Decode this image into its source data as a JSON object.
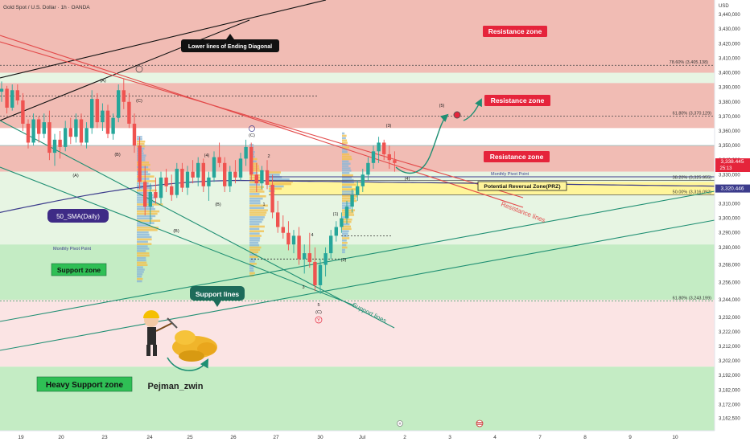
{
  "header": {
    "title": "Gold Spot / U.S. Dollar · 1h · OANDA",
    "currency": "USD"
  },
  "colors": {
    "resistance_fill": "#f1bcb4",
    "resistance_fill_light": "#f6d2cc",
    "support_fill": "#c4ecc4",
    "support_fill_light": "#e7f5e3",
    "pink_band": "#fbe4e4",
    "prz_fill": "#fff59a",
    "label_red": "#e5243b",
    "label_green": "#13a84a",
    "support_line": "#1f8f73",
    "resistance_line": "#e34b4b",
    "sma_line": "#3c3c8c",
    "up_candle": "#26a69a",
    "down_candle": "#ef5350"
  },
  "chart_data": {
    "type": "candlestick",
    "y_range": [
      3154,
      3450
    ],
    "price_ticks": [
      "3,440,000",
      "3,430,000",
      "3,420,000",
      "3,410,000",
      "3,400,000",
      "3,390,000",
      "3,380,000",
      "3,370,000",
      "3,360,000",
      "3,350,000",
      "3,340,000",
      "3,330,000",
      "3,320,000",
      "3,310,000",
      "3,300,000",
      "3,290,000",
      "3,280,000",
      "3,268,000",
      "3,256,000",
      "3,244,000",
      "3,232,000",
      "3,222,000",
      "3,212,000",
      "3,202,000",
      "3,192,000",
      "3,182,000",
      "3,172,000",
      "3,162,500"
    ],
    "price_tick_values": [
      3440,
      3430,
      3420,
      3410,
      3400,
      3390,
      3380,
      3370,
      3360,
      3350,
      3340,
      3330,
      3320,
      3310,
      3300,
      3290,
      3280,
      3268,
      3256,
      3244,
      3232,
      3222,
      3212,
      3202,
      3192,
      3182,
      3172,
      3162.5
    ],
    "x_ticks": [
      "19",
      "20",
      "23",
      "24",
      "25",
      "26",
      "27",
      "30",
      "Jul",
      "2",
      "3",
      "4",
      "7",
      "8",
      "9",
      "10"
    ],
    "x_tick_index": [
      0,
      12,
      24,
      36,
      48,
      60,
      72,
      84,
      94,
      106,
      118,
      130,
      142,
      154,
      166,
      178
    ],
    "current_price_label": "3,338.445",
    "current_price": 3338.445,
    "countdown_label": "25:13",
    "sma_price_label": "3,320.446",
    "sma_price": 3320.446,
    "zones": [
      {
        "name": "Resistance zone",
        "from": 3400,
        "to": 3450
      },
      {
        "name": "Resistance zone",
        "from": 3362,
        "to": 3393
      },
      {
        "name": "Resistance zone",
        "from": 3332,
        "to": 3350
      },
      {
        "name": "Potential Reversal Zone(PRZ)",
        "from": 3316,
        "to": 3325
      },
      {
        "name": "Support zone",
        "from": 3244,
        "to": 3282
      },
      {
        "name": "Heavy Support zone",
        "from": 3154,
        "to": 3198
      }
    ],
    "fib_levels": [
      {
        "label": "78.60% (3,405.138)",
        "value": 3405.138
      },
      {
        "label": "61.80% (3,370.129)",
        "value": 3370.129
      },
      {
        "label": "38.20% (3,325.955)",
        "value": 3325.955
      },
      {
        "label": "50.00% (3,316.092)",
        "value": 3316.092
      },
      {
        "label": "61.80% (3,243.199)",
        "value": 3243.199
      }
    ],
    "pivot_levels": [
      {
        "label": "Monthly Pivot Point",
        "value": 3328.5
      },
      {
        "label": "Monthly Pivot Point",
        "value": 3282
      }
    ],
    "wave_labels": [
      "(A)",
      "(B)",
      "(C)",
      "(4)",
      "(B)",
      "(C)",
      "2",
      "1",
      "4",
      "3",
      "5",
      "(1)",
      "(2)",
      "(3)",
      "(4)",
      "(5)",
      "(A)",
      "(B)",
      "(C)",
      "Y"
    ],
    "candles": [
      [
        3387,
        3394,
        3380,
        3389
      ],
      [
        3389,
        3391,
        3372,
        3376
      ],
      [
        3376,
        3392,
        3374,
        3388
      ],
      [
        3388,
        3392,
        3378,
        3381
      ],
      [
        3381,
        3386,
        3360,
        3365
      ],
      [
        3365,
        3368,
        3348,
        3352
      ],
      [
        3352,
        3372,
        3350,
        3368
      ],
      [
        3368,
        3370,
        3352,
        3358
      ],
      [
        3358,
        3372,
        3355,
        3366
      ],
      [
        3366,
        3374,
        3340,
        3345
      ],
      [
        3345,
        3358,
        3336,
        3354
      ],
      [
        3354,
        3360,
        3341,
        3349
      ],
      [
        3349,
        3367,
        3346,
        3362
      ],
      [
        3362,
        3369,
        3351,
        3356
      ],
      [
        3356,
        3372,
        3352,
        3368
      ],
      [
        3368,
        3372,
        3350,
        3352
      ],
      [
        3352,
        3366,
        3348,
        3362
      ],
      [
        3362,
        3388,
        3358,
        3382
      ],
      [
        3382,
        3386,
        3362,
        3366
      ],
      [
        3366,
        3379,
        3360,
        3374
      ],
      [
        3374,
        3378,
        3355,
        3358
      ],
      [
        3358,
        3372,
        3354,
        3369
      ],
      [
        3369,
        3392,
        3366,
        3388
      ],
      [
        3388,
        3396,
        3375,
        3380
      ],
      [
        3380,
        3386,
        3362,
        3365
      ],
      [
        3365,
        3372,
        3345,
        3350
      ],
      [
        3350,
        3356,
        3320,
        3325
      ],
      [
        3325,
        3336,
        3302,
        3308
      ],
      [
        3308,
        3324,
        3296,
        3318
      ],
      [
        3318,
        3328,
        3310,
        3314
      ],
      [
        3314,
        3332,
        3310,
        3328
      ],
      [
        3328,
        3334,
        3318,
        3322
      ],
      [
        3322,
        3330,
        3312,
        3316
      ],
      [
        3316,
        3338,
        3314,
        3334
      ],
      [
        3334,
        3338,
        3318,
        3321
      ],
      [
        3321,
        3336,
        3316,
        3332
      ],
      [
        3332,
        3340,
        3324,
        3328
      ],
      [
        3328,
        3342,
        3322,
        3338
      ],
      [
        3338,
        3341,
        3318,
        3322
      ],
      [
        3322,
        3332,
        3312,
        3328
      ],
      [
        3328,
        3346,
        3325,
        3342
      ],
      [
        3342,
        3352,
        3335,
        3338
      ],
      [
        3338,
        3342,
        3318,
        3322
      ],
      [
        3322,
        3336,
        3318,
        3332
      ],
      [
        3332,
        3340,
        3324,
        3328
      ],
      [
        3328,
        3345,
        3326,
        3341
      ],
      [
        3341,
        3354,
        3336,
        3349
      ],
      [
        3349,
        3352,
        3326,
        3330
      ],
      [
        3330,
        3338,
        3318,
        3324
      ],
      [
        3324,
        3336,
        3320,
        3333
      ],
      [
        3333,
        3340,
        3320,
        3323
      ],
      [
        3323,
        3330,
        3300,
        3304
      ],
      [
        3304,
        3312,
        3290,
        3294
      ],
      [
        3294,
        3302,
        3286,
        3290
      ],
      [
        3290,
        3298,
        3278,
        3282
      ],
      [
        3282,
        3292,
        3276,
        3288
      ],
      [
        3288,
        3294,
        3268,
        3272
      ],
      [
        3272,
        3282,
        3262,
        3276
      ],
      [
        3276,
        3290,
        3266,
        3270
      ],
      [
        3270,
        3280,
        3250,
        3254
      ],
      [
        3254,
        3272,
        3248,
        3268
      ],
      [
        3268,
        3280,
        3260,
        3276
      ],
      [
        3276,
        3292,
        3272,
        3288
      ],
      [
        3288,
        3298,
        3284,
        3294
      ],
      [
        3294,
        3304,
        3290,
        3300
      ],
      [
        3300,
        3312,
        3296,
        3308
      ],
      [
        3308,
        3320,
        3304,
        3316
      ],
      [
        3316,
        3326,
        3312,
        3322
      ],
      [
        3322,
        3334,
        3318,
        3330
      ],
      [
        3330,
        3342,
        3326,
        3338
      ],
      [
        3338,
        3350,
        3334,
        3346
      ],
      [
        3346,
        3356,
        3338,
        3352
      ],
      [
        3352,
        3354,
        3340,
        3344
      ],
      [
        3344,
        3350,
        3334,
        3340
      ],
      [
        3340,
        3346,
        3332,
        3338
      ]
    ]
  },
  "annotations": {
    "resistance_zone_label": "Resistance zone",
    "support_zone_label": "Support zone",
    "heavy_support_label": "Heavy Support zone",
    "prz_label": "Potential Reversal Zone(PRZ)",
    "sma_label": "50_SMA(Daily)",
    "diagonal_label": "Lower lines of Ending Diagonal",
    "support_lines_label": "Support lines",
    "support_lines_text": "Support lines",
    "resistance_lines_text": "Resistance lines",
    "brand": "Pejman_zwin"
  }
}
